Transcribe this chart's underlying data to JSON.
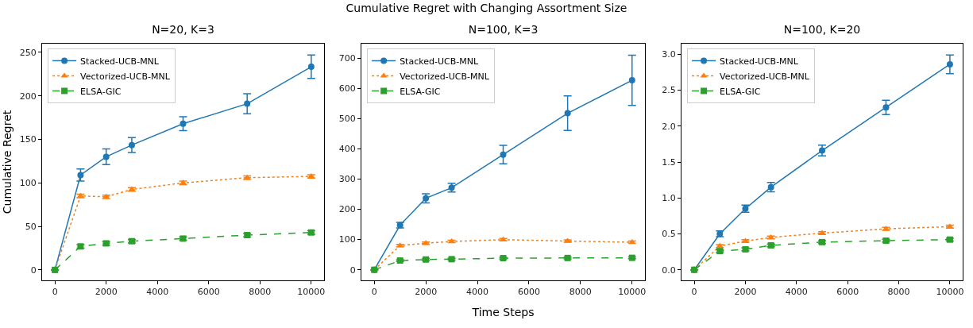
{
  "chart_data": [
    {
      "type": "line",
      "title": "N=20, K=3",
      "ylabel": "Cumulative Regret",
      "annotations": [
        "Cumulative Regret with Changing Assortment Size"
      ],
      "x": [
        0,
        1000,
        2000,
        3000,
        5000,
        7500,
        10000
      ],
      "xlim": [
        -500,
        10500
      ],
      "xticks": [
        0,
        2000,
        4000,
        6000,
        8000,
        10000
      ],
      "ylim": [
        -12,
        260
      ],
      "yticks": [
        0,
        50,
        100,
        150,
        200,
        250
      ],
      "grid": false,
      "legend": "top left",
      "series": [
        {
          "name": "Stacked-UCB-MNL",
          "color": "#1f77b4",
          "marker": "circle",
          "line_style": "solid",
          "values": [
            0,
            109,
            130,
            143.5,
            168,
            191,
            233.5
          ],
          "errors": [
            null,
            7,
            9,
            8.5,
            8,
            11.5,
            13.5
          ]
        },
        {
          "name": "Vectorized-UCB-MNL",
          "color": "#ff7f0e",
          "marker": "triangle",
          "line_style": "dotted",
          "values": [
            0,
            85,
            84,
            92.5,
            100,
            106,
            107.5
          ],
          "errors": [
            null,
            2,
            2,
            2,
            2,
            2,
            2
          ]
        },
        {
          "name": "ELSA-GIC",
          "color": "#2ca02c",
          "marker": "square",
          "line_style": "dashed",
          "values": [
            0,
            27,
            30.5,
            33,
            36,
            40,
            43
          ],
          "errors": [
            null,
            2,
            2,
            2,
            2,
            2,
            2
          ]
        }
      ]
    },
    {
      "type": "line",
      "title": "N=100, K=3",
      "xlabel": "Time Steps",
      "x": [
        0,
        1000,
        2000,
        3000,
        5000,
        7500,
        10000
      ],
      "xlim": [
        -500,
        10500
      ],
      "xticks": [
        0,
        2000,
        4000,
        6000,
        8000,
        10000
      ],
      "ylim": [
        -35,
        748
      ],
      "yticks": [
        0,
        100,
        200,
        300,
        400,
        500,
        600,
        700
      ],
      "grid": false,
      "legend": "top left",
      "series": [
        {
          "name": "Stacked-UCB-MNL",
          "color": "#1f77b4",
          "marker": "circle",
          "line_style": "solid",
          "values": [
            0,
            147.5,
            236.5,
            271.5,
            381,
            518,
            627
          ],
          "errors": [
            null,
            9,
            15,
            14.5,
            30.5,
            57,
            83
          ]
        },
        {
          "name": "Vectorized-UCB-MNL",
          "color": "#ff7f0e",
          "marker": "triangle",
          "line_style": "dotted",
          "values": [
            0,
            80,
            88,
            93.5,
            99.5,
            95,
            91
          ],
          "errors": [
            null,
            4,
            4,
            4,
            4,
            4,
            4
          ]
        },
        {
          "name": "ELSA-GIC",
          "color": "#2ca02c",
          "marker": "square",
          "line_style": "dashed",
          "values": [
            0,
            30.5,
            34,
            35,
            38.5,
            39,
            39.5
          ],
          "errors": [
            null,
            3,
            3,
            3,
            3,
            3,
            3
          ]
        }
      ]
    },
    {
      "type": "line",
      "title": "N=100, K=20",
      "x": [
        0,
        1000,
        2000,
        3000,
        5000,
        7500,
        10000
      ],
      "xlim": [
        -500,
        10500
      ],
      "xticks": [
        0,
        2000,
        4000,
        6000,
        8000,
        10000
      ],
      "ylim": [
        -0.147,
        3.147
      ],
      "yticks": [
        {
          "value": 0,
          "label": "0.0"
        },
        0.5,
        {
          "value": 1,
          "label": "1.0"
        },
        1.5,
        {
          "value": 2,
          "label": "2.0"
        },
        2.5,
        {
          "value": 3,
          "label": "3.0"
        }
      ],
      "grid": false,
      "legend": "top left",
      "series": [
        {
          "name": "Stacked-UCB-MNL",
          "color": "#1f77b4",
          "marker": "circle",
          "line_style": "solid",
          "values": [
            0,
            0.5,
            0.85,
            1.15,
            1.66,
            2.26,
            2.86
          ],
          "errors": [
            null,
            0.04,
            0.05,
            0.065,
            0.075,
            0.1,
            0.13
          ]
        },
        {
          "name": "Vectorized-UCB-MNL",
          "color": "#ff7f0e",
          "marker": "triangle",
          "line_style": "dotted",
          "values": [
            0,
            0.33,
            0.4,
            0.45,
            0.51,
            0.57,
            0.6
          ],
          "errors": [
            null,
            0.02,
            0.02,
            0.02,
            0.02,
            0.02,
            0.02
          ]
        },
        {
          "name": "ELSA-GIC",
          "color": "#2ca02c",
          "marker": "square",
          "line_style": "dashed",
          "values": [
            0,
            0.26,
            0.285,
            0.34,
            0.385,
            0.405,
            0.42
          ],
          "errors": [
            null,
            0.02,
            0.02,
            0.02,
            0.02,
            0.02,
            0.02
          ]
        }
      ]
    }
  ]
}
